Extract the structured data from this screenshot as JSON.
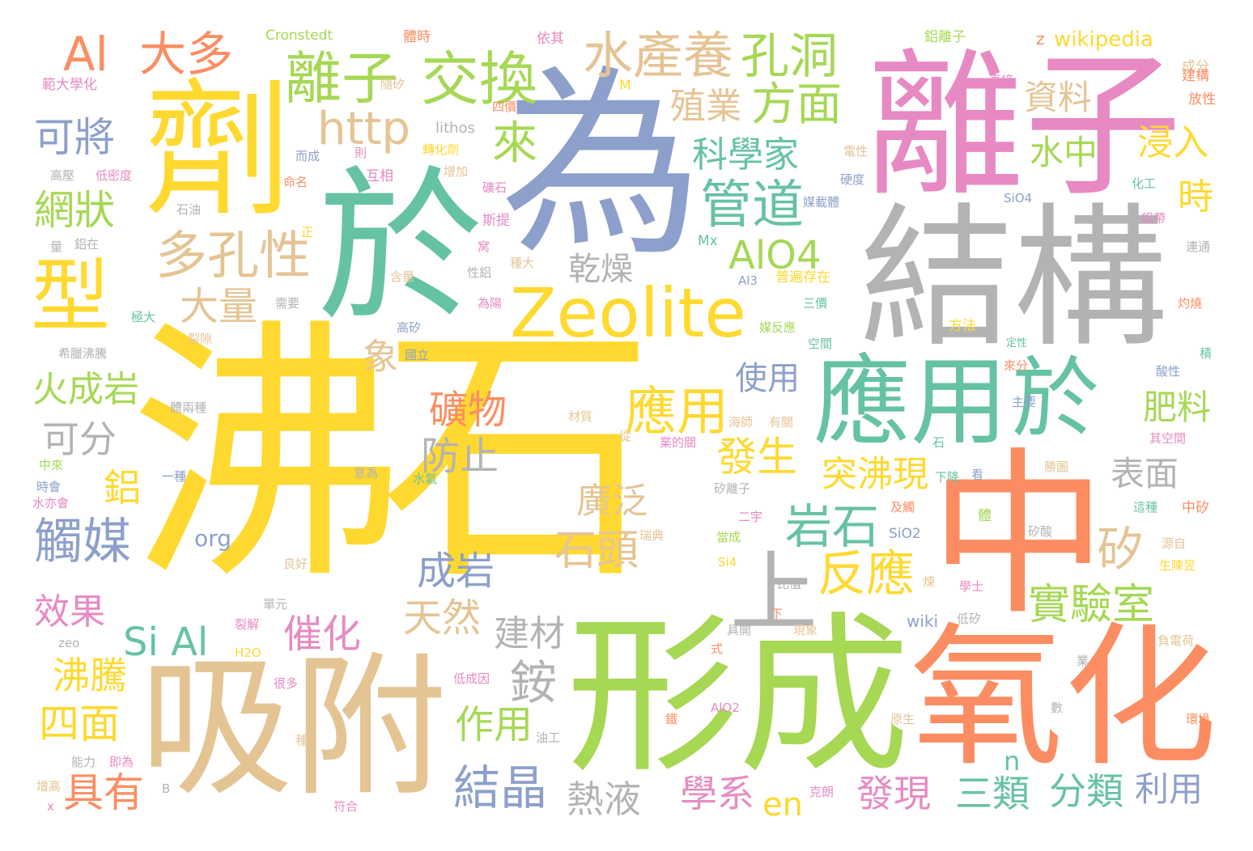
{
  "palette": {
    "yellow": "#ffd92f",
    "blue": "#8da0cb",
    "green": "#66c2a5",
    "pink": "#e78ac3",
    "gray": "#b3b3b3",
    "orange": "#fc8d62",
    "lime": "#a6d854",
    "tan": "#e5c494"
  },
  "words": [
    {
      "text": "沸石",
      "color": "yellow"
    },
    {
      "text": "為",
      "color": "blue"
    },
    {
      "text": "離子",
      "color": "pink"
    },
    {
      "text": "結構",
      "color": "gray"
    },
    {
      "text": "於",
      "color": "green"
    },
    {
      "text": "中",
      "color": "orange"
    },
    {
      "text": "形成",
      "color": "lime"
    },
    {
      "text": "吸附",
      "color": "tan"
    },
    {
      "text": "氧化",
      "color": "orange"
    },
    {
      "text": "劑",
      "color": "yellow"
    },
    {
      "text": "應用",
      "color": "green"
    },
    {
      "text": "於",
      "color": "green"
    },
    {
      "text": "Zeolite",
      "color": "yellow"
    },
    {
      "text": "型",
      "color": "yellow"
    },
    {
      "text": "交換",
      "color": "lime"
    },
    {
      "text": "離子",
      "color": "lime"
    },
    {
      "text": "水產養",
      "color": "tan"
    },
    {
      "text": "孔洞",
      "color": "lime"
    },
    {
      "text": "Al",
      "color": "orange"
    },
    {
      "text": "大多",
      "color": "orange"
    },
    {
      "text": "http",
      "color": "tan"
    },
    {
      "text": "方面",
      "color": "lime"
    },
    {
      "text": "殖業",
      "color": "tan"
    },
    {
      "text": "可將",
      "color": "blue"
    },
    {
      "text": "來",
      "color": "lime"
    },
    {
      "text": "科學家",
      "color": "green"
    },
    {
      "text": "資料",
      "color": "tan"
    },
    {
      "text": "水中",
      "color": "lime"
    },
    {
      "text": "浸入",
      "color": "yellow"
    },
    {
      "text": "時",
      "color": "yellow"
    },
    {
      "text": "網狀",
      "color": "lime"
    },
    {
      "text": "管道",
      "color": "green"
    },
    {
      "text": "多孔性",
      "color": "tan"
    },
    {
      "text": "AlO4",
      "color": "lime"
    },
    {
      "text": "乾燥",
      "color": "gray"
    },
    {
      "text": "大量",
      "color": "tan"
    },
    {
      "text": "上",
      "color": "gray"
    },
    {
      "text": "火成岩",
      "color": "lime"
    },
    {
      "text": "象",
      "color": "tan"
    },
    {
      "text": "使用",
      "color": "blue"
    },
    {
      "text": "應用",
      "color": "yellow"
    },
    {
      "text": "礦物",
      "color": "orange"
    },
    {
      "text": "肥料",
      "color": "lime"
    },
    {
      "text": "表面",
      "color": "gray"
    },
    {
      "text": "可分",
      "color": "gray"
    },
    {
      "text": "防止",
      "color": "gray"
    },
    {
      "text": "發生",
      "color": "yellow"
    },
    {
      "text": "突沸現",
      "color": "yellow"
    },
    {
      "text": "廣泛",
      "color": "tan"
    },
    {
      "text": "岩石",
      "color": "green"
    },
    {
      "text": "矽",
      "color": "tan"
    },
    {
      "text": "石頭",
      "color": "tan"
    },
    {
      "text": "反應",
      "color": "yellow"
    },
    {
      "text": "鋁",
      "color": "yellow"
    },
    {
      "text": "觸媒",
      "color": "blue"
    },
    {
      "text": "成岩",
      "color": "blue"
    },
    {
      "text": "實驗室",
      "color": "lime"
    },
    {
      "text": "效果",
      "color": "pink"
    },
    {
      "text": "天然",
      "color": "tan"
    },
    {
      "text": "Si Al",
      "color": "green"
    },
    {
      "text": "建材",
      "color": "gray"
    },
    {
      "text": "催化",
      "color": "pink"
    },
    {
      "text": "沸騰",
      "color": "yellow"
    },
    {
      "text": "銨",
      "color": "gray"
    },
    {
      "text": "四面",
      "color": "yellow"
    },
    {
      "text": "作用",
      "color": "lime"
    },
    {
      "text": "具有",
      "color": "orange"
    },
    {
      "text": "結晶",
      "color": "blue"
    },
    {
      "text": "熱液",
      "color": "gray"
    },
    {
      "text": "學系",
      "color": "pink"
    },
    {
      "text": "en",
      "color": "yellow"
    },
    {
      "text": "發現",
      "color": "pink"
    },
    {
      "text": "三類",
      "color": "green"
    },
    {
      "text": "分類",
      "color": "green"
    },
    {
      "text": "利用",
      "color": "blue"
    },
    {
      "text": "n",
      "color": "green"
    },
    {
      "text": "wikipedia",
      "color": "yellow"
    },
    {
      "text": "Cronstedt",
      "color": "lime"
    },
    {
      "text": "範大學化",
      "color": "pink"
    },
    {
      "text": "體時",
      "color": "orange"
    },
    {
      "text": "依其",
      "color": "pink"
    },
    {
      "text": "鋁離子",
      "color": "lime"
    },
    {
      "text": "z",
      "color": "orange"
    },
    {
      "text": "成分",
      "color": "tan"
    },
    {
      "text": "隨矽",
      "color": "tan"
    },
    {
      "text": "M",
      "color": "yellow"
    },
    {
      "text": "直接",
      "color": "pink"
    },
    {
      "text": "建構",
      "color": "orange"
    },
    {
      "text": "lithos",
      "color": "gray"
    },
    {
      "text": "四價",
      "color": "orange"
    },
    {
      "text": "放性",
      "color": "orange"
    },
    {
      "text": "高壓",
      "color": "gray"
    },
    {
      "text": "低密度",
      "color": "pink"
    },
    {
      "text": "而成",
      "color": "blue"
    },
    {
      "text": "則",
      "color": "pink"
    },
    {
      "text": "轉化劑",
      "color": "yellow"
    },
    {
      "text": "電性",
      "color": "tan"
    },
    {
      "text": "命名",
      "color": "orange"
    },
    {
      "text": "互相",
      "color": "pink"
    },
    {
      "text": "增加",
      "color": "tan"
    },
    {
      "text": "礦石",
      "color": "pink"
    },
    {
      "text": "硬度",
      "color": "blue"
    },
    {
      "text": "化工",
      "color": "green"
    },
    {
      "text": "石油",
      "color": "gray"
    },
    {
      "text": "斯提",
      "color": "pink"
    },
    {
      "text": "媒載體",
      "color": "blue"
    },
    {
      "text": "SiO4",
      "color": "blue"
    },
    {
      "text": "鋁帶",
      "color": "pink"
    },
    {
      "text": "量",
      "color": "gray"
    },
    {
      "text": "鋁在",
      "color": "gray"
    },
    {
      "text": "正",
      "color": "yellow"
    },
    {
      "text": "窝",
      "color": "pink"
    },
    {
      "text": "Mx",
      "color": "green"
    },
    {
      "text": "連通",
      "color": "gray"
    },
    {
      "text": "性鋁",
      "color": "gray"
    },
    {
      "text": "種大",
      "color": "tan"
    },
    {
      "text": "含量",
      "color": "tan"
    },
    {
      "text": "Al3",
      "color": "blue"
    },
    {
      "text": "普遍存在",
      "color": "yellow"
    },
    {
      "text": "需要",
      "color": "gray"
    },
    {
      "text": "為陽",
      "color": "pink"
    },
    {
      "text": "三價",
      "color": "green"
    },
    {
      "text": "灼燒",
      "color": "orange"
    },
    {
      "text": "極大",
      "color": "green"
    },
    {
      "text": "高矽",
      "color": "blue"
    },
    {
      "text": "方法",
      "color": "yellow"
    },
    {
      "text": "裂隙",
      "color": "tan"
    },
    {
      "text": "媒反應",
      "color": "lime"
    },
    {
      "text": "空間",
      "color": "green"
    },
    {
      "text": "定性",
      "color": "green"
    },
    {
      "text": "積",
      "color": "green"
    },
    {
      "text": "希臘沸騰",
      "color": "gray"
    },
    {
      "text": "國立",
      "color": "blue"
    },
    {
      "text": "酸性",
      "color": "blue"
    },
    {
      "text": "來分",
      "color": "orange"
    },
    {
      "text": "體兩種",
      "color": "gray"
    },
    {
      "text": "主要",
      "color": "blue"
    },
    {
      "text": "材質",
      "color": "tan"
    },
    {
      "text": "海師",
      "color": "tan"
    },
    {
      "text": "有關",
      "color": "tan"
    },
    {
      "text": "從",
      "color": "tan"
    },
    {
      "text": "業的關",
      "color": "pink"
    },
    {
      "text": "石",
      "color": "green"
    },
    {
      "text": "其空間",
      "color": "pink"
    },
    {
      "text": "中來",
      "color": "lime"
    },
    {
      "text": "一種",
      "color": "blue"
    },
    {
      "text": "意為",
      "color": "gray"
    },
    {
      "text": "水氣",
      "color": "green"
    },
    {
      "text": "下降",
      "color": "green"
    },
    {
      "text": "看",
      "color": "blue"
    },
    {
      "text": "勝圖",
      "color": "tan"
    },
    {
      "text": "時會",
      "color": "blue"
    },
    {
      "text": "矽離子",
      "color": "gray"
    },
    {
      "text": "水亦會",
      "color": "pink"
    },
    {
      "text": "二宇",
      "color": "pink"
    },
    {
      "text": "及觸",
      "color": "orange"
    },
    {
      "text": "這種",
      "color": "green"
    },
    {
      "text": "中矽",
      "color": "orange"
    },
    {
      "text": "org",
      "color": "blue"
    },
    {
      "text": "瑞典",
      "color": "tan"
    },
    {
      "text": "當成",
      "color": "lime"
    },
    {
      "text": "SiO2",
      "color": "blue"
    },
    {
      "text": "體",
      "color": "lime"
    },
    {
      "text": "矽酸",
      "color": "gray"
    },
    {
      "text": "源自",
      "color": "tan"
    },
    {
      "text": "良好",
      "color": "tan"
    },
    {
      "text": "Si4",
      "color": "yellow"
    },
    {
      "text": "生陳昱",
      "color": "yellow"
    },
    {
      "text": "比值",
      "color": "gray"
    },
    {
      "text": "煉",
      "color": "tan"
    },
    {
      "text": "學士",
      "color": "pink"
    },
    {
      "text": "單元",
      "color": "gray"
    },
    {
      "text": "wiki",
      "color": "blue"
    },
    {
      "text": "低矽",
      "color": "gray"
    },
    {
      "text": "下",
      "color": "orange"
    },
    {
      "text": "裂解",
      "color": "pink"
    },
    {
      "text": "具開",
      "color": "gray"
    },
    {
      "text": "現象",
      "color": "tan"
    },
    {
      "text": "zeo",
      "color": "gray"
    },
    {
      "text": "負電荷",
      "color": "tan"
    },
    {
      "text": "H2O",
      "color": "yellow"
    },
    {
      "text": "式",
      "color": "orange"
    },
    {
      "text": "業",
      "color": "gray"
    },
    {
      "text": "很多",
      "color": "pink"
    },
    {
      "text": "低成因",
      "color": "pink"
    },
    {
      "text": "AlO2",
      "color": "pink"
    },
    {
      "text": "數",
      "color": "gray"
    },
    {
      "text": "鐵",
      "color": "orange"
    },
    {
      "text": "原生",
      "color": "tan"
    },
    {
      "text": "環境",
      "color": "orange"
    },
    {
      "text": "種",
      "color": "tan"
    },
    {
      "text": "能力",
      "color": "gray"
    },
    {
      "text": "即為",
      "color": "pink"
    },
    {
      "text": "油工",
      "color": "gray"
    },
    {
      "text": "增高",
      "color": "tan"
    },
    {
      "text": "B",
      "color": "gray"
    },
    {
      "text": "克朗",
      "color": "pink"
    },
    {
      "text": "符合",
      "color": "pink"
    },
    {
      "text": "x",
      "color": "pink"
    }
  ]
}
